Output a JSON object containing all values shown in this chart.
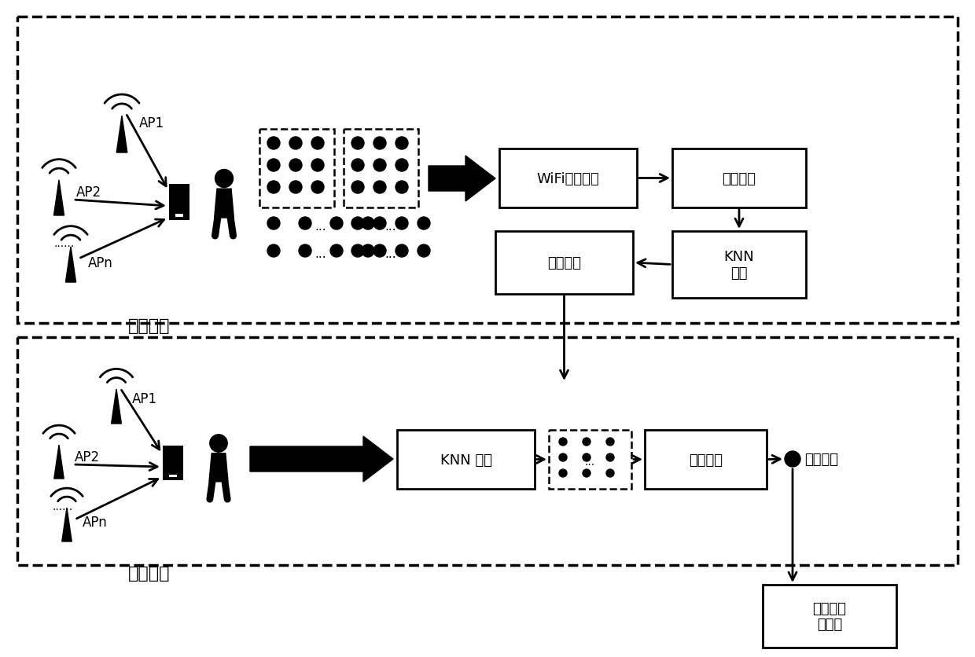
{
  "bg_color": "#ffffff",
  "offline_label": "离线阶段",
  "online_label": "在线阶段",
  "wifi_collect_label": "WiFi信号采集",
  "signal_proc_label": "信号处理",
  "knn_train_label": "KNN\n训练",
  "train_result_label": "训练结果",
  "knn_predict_label": "KNN 预测",
  "intensity_match_label": "强度匹配",
  "final_pos_label": "最终位置",
  "broadcast_label": "播报控制\n服务器",
  "ap1": "AP1",
  "ap2": "AP2",
  "apn": "APn",
  "dots_str": "......",
  "ellipsis": "..."
}
